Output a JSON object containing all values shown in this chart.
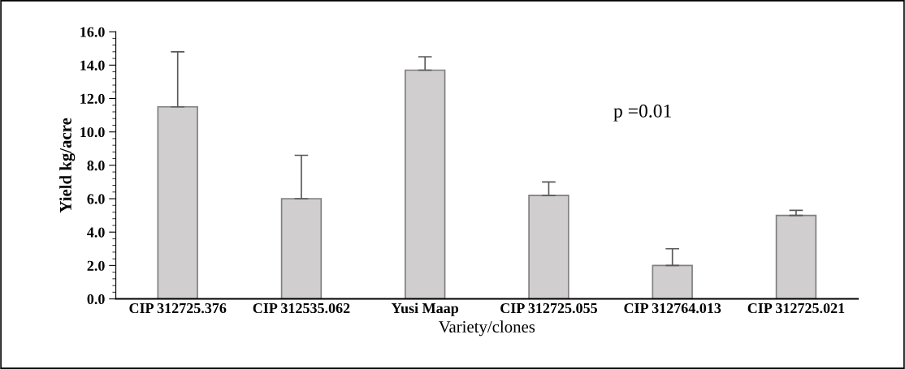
{
  "chart_data": {
    "type": "bar",
    "xlabel": "Variety/clones",
    "ylabel": "Yield kg/acre",
    "categories": [
      "CIP 312725.376",
      "CIP 312535.062",
      "Yusi Maap",
      "CIP 312725.055",
      "CIP 312764.013",
      "CIP 312725.021"
    ],
    "values": [
      11.5,
      6.0,
      13.7,
      6.2,
      2.0,
      5.0
    ],
    "errors": [
      3.3,
      2.6,
      0.8,
      0.8,
      1.0,
      0.3
    ],
    "color": "#d0cece",
    "ylim": [
      0,
      16
    ],
    "yticks": [
      {
        "value": 0,
        "label": "0.0"
      },
      {
        "value": 2,
        "label": "2.0"
      },
      {
        "value": 4,
        "label": "4.0"
      },
      {
        "value": 6,
        "label": "6.0"
      },
      {
        "value": 8,
        "label": "8.0"
      },
      {
        "value": 10,
        "label": "10.0"
      },
      {
        "value": 12,
        "label": "12.0"
      },
      {
        "value": 14,
        "label": "14.0"
      },
      {
        "value": 16,
        "label": "16.0"
      }
    ],
    "annotations": [
      "p =0.01"
    ],
    "grid": false,
    "legend": false
  }
}
